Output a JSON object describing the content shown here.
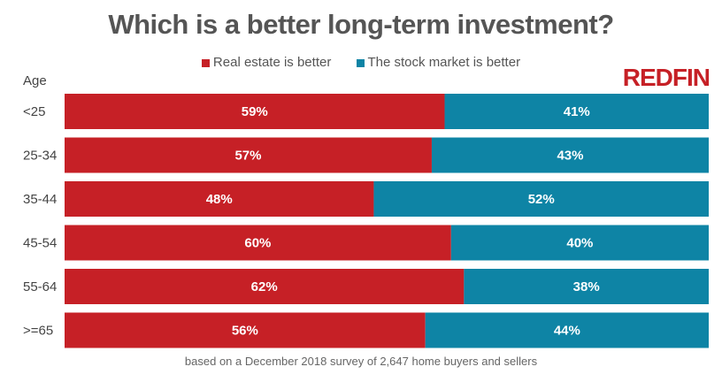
{
  "chart_data": {
    "type": "bar",
    "stacked": true,
    "orientation": "horizontal",
    "title": "Which is a better long-term investment?",
    "ylabel": "Age",
    "categories": [
      "<25",
      "25-34",
      "35-44",
      "45-54",
      "55-64",
      ">=65"
    ],
    "series": [
      {
        "name": "Real estate is better",
        "color": "#c62026",
        "values": [
          59,
          57,
          48,
          60,
          62,
          56
        ]
      },
      {
        "name": "The stock market is better",
        "color": "#0e84a5",
        "values": [
          41,
          43,
          52,
          40,
          38,
          44
        ]
      }
    ],
    "xlim": [
      0,
      100
    ],
    "legend": "top",
    "grid": false,
    "footnote": "based on a December 2018 survey of 2,647 home buyers and sellers",
    "logo": "REDFIN"
  }
}
